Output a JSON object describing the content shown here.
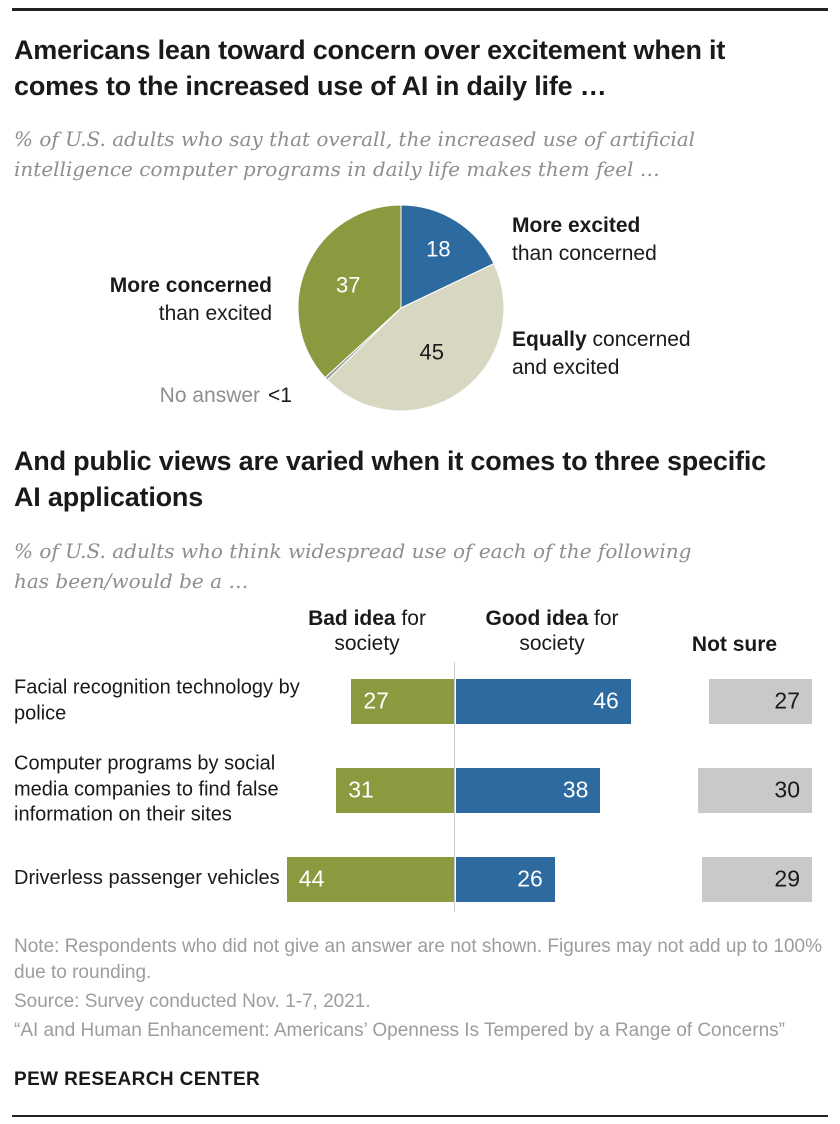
{
  "header": {
    "title1": "Americans lean toward concern over excitement when it comes to the increased use of AI in daily life …",
    "subtitle1": "% of U.S. adults who say that overall, the increased use of artificial intelligence computer programs in daily life makes them feel …",
    "title2": "And public views are varied when it comes to three specific AI applications",
    "subtitle2": "% of U.S. adults who think widespread use of each of the following has been/would be a …"
  },
  "pie_labels": {
    "excited_bold": "More excited",
    "excited_rest": "than concerned",
    "equally_bold": "Equally",
    "equally_rest1": "concerned",
    "equally_rest2": "and excited",
    "concerned_bold": "More concerned",
    "concerned_rest": "than excited",
    "noanswer_label": "No answer",
    "noanswer_value": "<1"
  },
  "bar_headers": {
    "bad_bold": "Bad idea",
    "bad_rest": " for society",
    "good_bold": "Good idea",
    "good_rest": " for society",
    "notsure": "Not sure"
  },
  "footer": {
    "note": "Note: Respondents who did not give an answer are not shown. Figures may not add up to 100% due to rounding.",
    "source": "Source: Survey conducted Nov. 1-7, 2021.",
    "report": "“AI and Human Enhancement: Americans’ Openness Is Tempered by a Range of Concerns”",
    "brand": "PEW RESEARCH CENTER"
  },
  "colors": {
    "blue": "#2D6A9F",
    "olive": "#899A3F",
    "tan": "#D8D7C2",
    "gray_slice": "#9A9A9A",
    "gray_bar": "#C9C9C9"
  },
  "chart_data": [
    {
      "type": "pie",
      "title": "Increased use of AI in daily life makes them feel",
      "slices": [
        {
          "label": "More excited than concerned",
          "value": 18,
          "display": "18",
          "color": "#2D6A9F",
          "value_color": "#ffffff"
        },
        {
          "label": "Equally concerned and excited",
          "value": 45,
          "display": "45",
          "color": "#D8D7C2",
          "value_color": "#1a1a1a"
        },
        {
          "label": "No answer",
          "value": 0.5,
          "display": "<1",
          "color": "#9A9A9A",
          "value_color": null
        },
        {
          "label": "More concerned than excited",
          "value": 37,
          "display": "37",
          "color": "#899A3F",
          "value_color": "#ffffff"
        }
      ]
    },
    {
      "type": "bar",
      "orientation": "horizontal-diverging",
      "categories": [
        "Facial recognition technology by police",
        "Computer programs by social media companies to find false information on their sites",
        "Driverless passenger vehicles"
      ],
      "series": [
        {
          "name": "Bad idea for society",
          "values": [
            27,
            31,
            44
          ],
          "color": "#899A3F"
        },
        {
          "name": "Good idea for society",
          "values": [
            46,
            38,
            26
          ],
          "color": "#2D6A9F"
        },
        {
          "name": "Not sure",
          "values": [
            27,
            30,
            29
          ],
          "color": "#C9C9C9"
        }
      ],
      "xlim": [
        0,
        50
      ],
      "legend_position": "top",
      "grid": false
    }
  ]
}
